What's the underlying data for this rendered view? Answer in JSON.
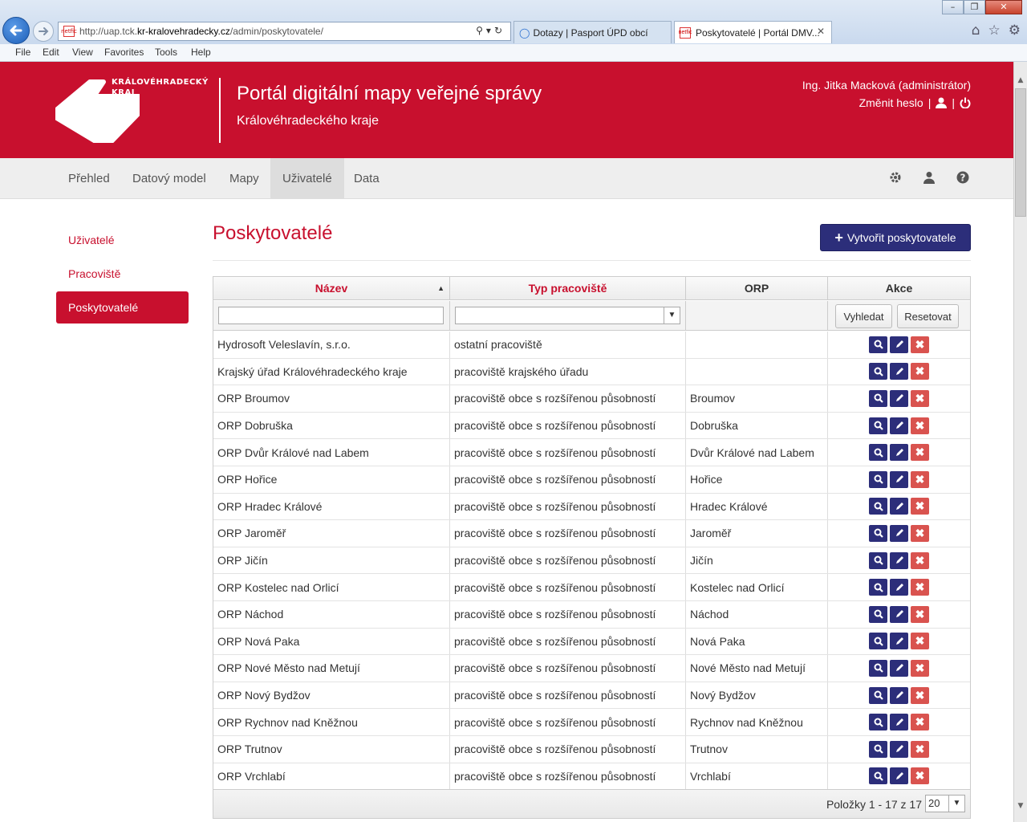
{
  "browser": {
    "url_prefix": "http://uap.tck.",
    "url_domain": "kr-kralovehradecky.cz",
    "url_path": "/admin/poskytovatele/",
    "tabs": [
      {
        "label": "Dotazy | Pasport ÚPD obcí"
      },
      {
        "label": "Poskytovatelé | Portál DMV..."
      }
    ],
    "favicon_text": "netfic",
    "menu": [
      "File",
      "Edit",
      "View",
      "Favorites",
      "Tools",
      "Help"
    ]
  },
  "header": {
    "logo_line1": "KRÁLOVÉHRADECKÝ",
    "logo_line2": "KRAJ",
    "title": "Portál digitální mapy veřejné správy",
    "subtitle": "Královéhradeckého kraje",
    "user": "Ing. Jitka Macková (administrátor)",
    "change_password": "Změnit heslo",
    "separator": "|"
  },
  "nav": {
    "items": [
      "Přehled",
      "Datový model",
      "Mapy",
      "Uživatelé",
      "Data"
    ],
    "active": "Uživatelé"
  },
  "sidebar": {
    "items": [
      "Uživatelé",
      "Pracoviště",
      "Poskytovatelé"
    ],
    "active": "Poskytovatelé"
  },
  "main": {
    "title": "Poskytovatelé",
    "create_button": "Vytvořit poskytovatele"
  },
  "grid": {
    "columns": [
      "Název",
      "Typ pracoviště",
      "ORP",
      "Akce"
    ],
    "sorted_column": "Název",
    "filter": {
      "name_value": "",
      "type_value": "",
      "search_button": "Vyhledat",
      "reset_button": "Resetovat"
    },
    "rows": [
      {
        "name": "Hydrosoft Veleslavín, s.r.o.",
        "type": "ostatní pracoviště",
        "orp": ""
      },
      {
        "name": "Krajský úřad Královéhradeckého kraje",
        "type": "pracoviště krajského úřadu",
        "orp": ""
      },
      {
        "name": "ORP Broumov",
        "type": "pracoviště obce s rozšířenou působností",
        "orp": "Broumov"
      },
      {
        "name": "ORP Dobruška",
        "type": "pracoviště obce s rozšířenou působností",
        "orp": "Dobruška"
      },
      {
        "name": "ORP Dvůr Králové nad Labem",
        "type": "pracoviště obce s rozšířenou působností",
        "orp": "Dvůr Králové nad Labem"
      },
      {
        "name": "ORP Hořice",
        "type": "pracoviště obce s rozšířenou působností",
        "orp": "Hořice"
      },
      {
        "name": "ORP Hradec Králové",
        "type": "pracoviště obce s rozšířenou působností",
        "orp": "Hradec Králové"
      },
      {
        "name": "ORP Jaroměř",
        "type": "pracoviště obce s rozšířenou působností",
        "orp": "Jaroměř"
      },
      {
        "name": "ORP Jičín",
        "type": "pracoviště obce s rozšířenou působností",
        "orp": "Jičín"
      },
      {
        "name": "ORP Kostelec nad Orlicí",
        "type": "pracoviště obce s rozšířenou působností",
        "orp": "Kostelec nad Orlicí"
      },
      {
        "name": "ORP Náchod",
        "type": "pracoviště obce s rozšířenou působností",
        "orp": "Náchod"
      },
      {
        "name": "ORP Nová Paka",
        "type": "pracoviště obce s rozšířenou působností",
        "orp": "Nová Paka"
      },
      {
        "name": "ORP Nové Město nad Metují",
        "type": "pracoviště obce s rozšířenou působností",
        "orp": "Nové Město nad Metují"
      },
      {
        "name": "ORP Nový Bydžov",
        "type": "pracoviště obce s rozšířenou působností",
        "orp": "Nový Bydžov"
      },
      {
        "name": "ORP Rychnov nad Kněžnou",
        "type": "pracoviště obce s rozšířenou působností",
        "orp": "Rychnov nad Kněžnou"
      },
      {
        "name": "ORP Trutnov",
        "type": "pracoviště obce s rozšířenou působností",
        "orp": "Trutnov"
      },
      {
        "name": "ORP Vrchlabí",
        "type": "pracoviště obce s rozšířenou působností",
        "orp": "Vrchlabí"
      }
    ],
    "pager_text": "Položky 1 - 17 z 17",
    "page_size": "20"
  },
  "colors": {
    "brand_red": "#c8102e",
    "button_navy": "#2c2e7a",
    "delete_red": "#d9534f"
  }
}
